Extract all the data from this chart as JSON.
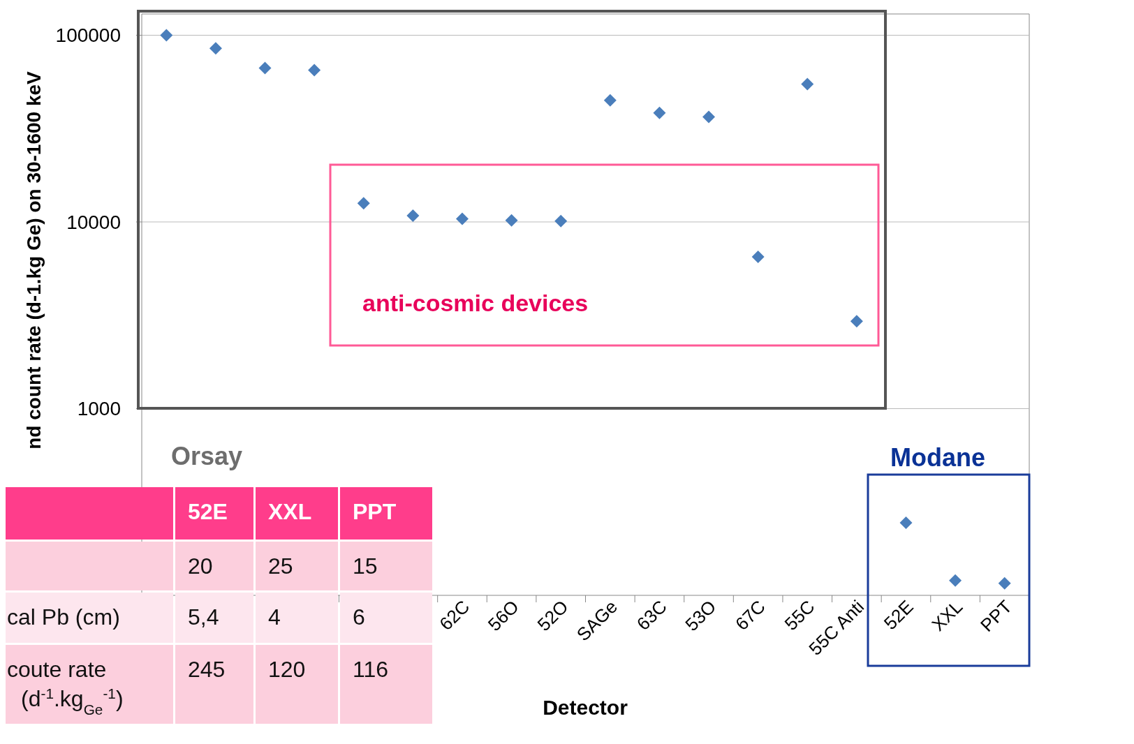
{
  "chart_data": {
    "type": "scatter",
    "xlabel": "Detector",
    "ylabel": "nd count rate (d-1.kg Ge) on 30-1600 keV",
    "categories": [
      null,
      null,
      null,
      null,
      null,
      null,
      "62C",
      "56O",
      "52O",
      "SAGe",
      "63C",
      "53O",
      "67C",
      "55C",
      "55C Anti",
      "52E",
      "XXL",
      "PPT"
    ],
    "series": [
      {
        "color": "#4a7ebb",
        "values": [
          100000,
          85000,
          66700,
          65000,
          12600,
          10800,
          10400,
          10200,
          10100,
          44800,
          38400,
          36500,
          6500,
          54700,
          2940,
          245,
          120,
          116
        ]
      }
    ],
    "log": true,
    "ylim": [
      100,
      130000
    ],
    "yticks": [
      1000,
      10000,
      100000
    ],
    "grid": "y",
    "marker": "diamond",
    "annotations": [
      "anti-cosmic devices",
      "Orsay",
      "Modane",
      "52E",
      "XXL",
      "PPT",
      "20",
      "25",
      "15",
      "cal Pb (cm)",
      "5,4",
      "4",
      "6",
      "coute rate",
      "(d$^{-1}$.kg$_{Ge}$$^{-1}$)",
      "245",
      "120",
      "116"
    ]
  }
}
